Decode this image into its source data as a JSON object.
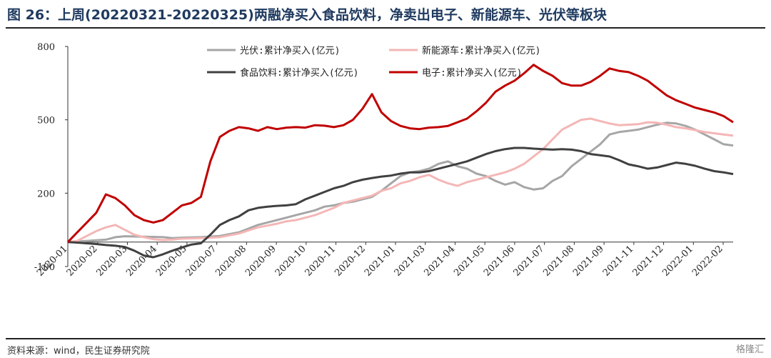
{
  "figure": {
    "title": "图 26：上周(20220321-20220325)两融净买入食品饮料，净卖出电子、新能源车、光伏等板块",
    "source": "资料来源：wind，民生证券研究院",
    "watermark": "格隆汇"
  },
  "chart_data": {
    "type": "line",
    "title": "",
    "xlabel": "",
    "ylabel": "",
    "ylim": [
      -100,
      800
    ],
    "yticks": [
      -100,
      200,
      500,
      800
    ],
    "xticks": [
      "2020-01",
      "2020-02",
      "2020-03",
      "2020-04",
      "2020-05",
      "2020-07",
      "2020-08",
      "2020-09",
      "2020-10",
      "2020-11",
      "2020-12",
      "2021-01",
      "2021-03",
      "2021-04",
      "2021-05",
      "2021-06",
      "2021-07",
      "2021-08",
      "2021-09",
      "2021-11",
      "2021-12",
      "2022-01",
      "2022-02"
    ],
    "legend_position": "top",
    "grid": false,
    "series": [
      {
        "name": "光伏:累计净买入(亿元)",
        "color": "#a6a6a6",
        "points": [
          [
            0,
            0
          ],
          [
            2,
            5
          ],
          [
            4,
            10
          ],
          [
            5,
            20
          ],
          [
            6,
            24
          ],
          [
            8,
            22
          ],
          [
            10,
            20
          ],
          [
            11,
            16
          ],
          [
            12,
            18
          ],
          [
            14,
            20
          ],
          [
            16,
            25
          ],
          [
            18,
            40
          ],
          [
            20,
            70
          ],
          [
            22,
            90
          ],
          [
            23,
            100
          ],
          [
            24,
            110
          ],
          [
            25,
            120
          ],
          [
            26,
            130
          ],
          [
            27,
            145
          ],
          [
            28,
            150
          ],
          [
            29,
            160
          ],
          [
            30,
            165
          ],
          [
            31,
            175
          ],
          [
            32,
            185
          ],
          [
            33,
            210
          ],
          [
            34,
            240
          ],
          [
            35,
            270
          ],
          [
            36,
            285
          ],
          [
            37,
            290
          ],
          [
            38,
            300
          ],
          [
            39,
            320
          ],
          [
            40,
            330
          ],
          [
            41,
            310
          ],
          [
            42,
            300
          ],
          [
            43,
            280
          ],
          [
            44,
            270
          ],
          [
            45,
            250
          ],
          [
            46,
            235
          ],
          [
            47,
            245
          ],
          [
            48,
            225
          ],
          [
            49,
            215
          ],
          [
            50,
            220
          ],
          [
            51,
            250
          ],
          [
            52,
            270
          ],
          [
            53,
            310
          ],
          [
            54,
            340
          ],
          [
            55,
            370
          ],
          [
            56,
            400
          ],
          [
            57,
            440
          ],
          [
            58,
            450
          ],
          [
            59,
            455
          ],
          [
            60,
            460
          ],
          [
            61,
            470
          ],
          [
            62,
            480
          ],
          [
            63,
            488
          ],
          [
            64,
            485
          ],
          [
            65,
            475
          ],
          [
            66,
            460
          ],
          [
            67,
            440
          ],
          [
            68,
            420
          ],
          [
            69,
            400
          ],
          [
            70,
            395
          ]
        ]
      },
      {
        "name": "新能源车:累计净买入(亿元)",
        "color": "#f4b6b6",
        "points": [
          [
            0,
            0
          ],
          [
            1,
            5
          ],
          [
            2,
            25
          ],
          [
            3,
            45
          ],
          [
            4,
            60
          ],
          [
            5,
            70
          ],
          [
            6,
            50
          ],
          [
            7,
            30
          ],
          [
            8,
            20
          ],
          [
            9,
            12
          ],
          [
            10,
            8
          ],
          [
            11,
            10
          ],
          [
            12,
            14
          ],
          [
            14,
            16
          ],
          [
            16,
            20
          ],
          [
            18,
            35
          ],
          [
            20,
            60
          ],
          [
            22,
            75
          ],
          [
            23,
            85
          ],
          [
            24,
            90
          ],
          [
            25,
            100
          ],
          [
            26,
            110
          ],
          [
            27,
            125
          ],
          [
            28,
            140
          ],
          [
            29,
            160
          ],
          [
            30,
            170
          ],
          [
            31,
            180
          ],
          [
            32,
            190
          ],
          [
            33,
            210
          ],
          [
            34,
            220
          ],
          [
            35,
            240
          ],
          [
            36,
            250
          ],
          [
            37,
            265
          ],
          [
            38,
            275
          ],
          [
            39,
            255
          ],
          [
            40,
            240
          ],
          [
            41,
            230
          ],
          [
            42,
            245
          ],
          [
            43,
            255
          ],
          [
            44,
            265
          ],
          [
            45,
            275
          ],
          [
            46,
            285
          ],
          [
            47,
            300
          ],
          [
            48,
            320
          ],
          [
            49,
            350
          ],
          [
            50,
            380
          ],
          [
            51,
            420
          ],
          [
            52,
            460
          ],
          [
            53,
            480
          ],
          [
            54,
            500
          ],
          [
            55,
            505
          ],
          [
            56,
            495
          ],
          [
            57,
            485
          ],
          [
            58,
            478
          ],
          [
            59,
            480
          ],
          [
            60,
            482
          ],
          [
            61,
            490
          ],
          [
            62,
            488
          ],
          [
            63,
            480
          ],
          [
            64,
            470
          ],
          [
            65,
            465
          ],
          [
            66,
            458
          ],
          [
            67,
            450
          ],
          [
            68,
            445
          ],
          [
            69,
            440
          ],
          [
            70,
            435
          ]
        ]
      },
      {
        "name": "食品饮料:累计净买入(亿元)",
        "color": "#404040",
        "points": [
          [
            0,
            0
          ],
          [
            1,
            -2
          ],
          [
            2,
            -5
          ],
          [
            3,
            -8
          ],
          [
            4,
            -12
          ],
          [
            5,
            -15
          ],
          [
            6,
            -20
          ],
          [
            7,
            -35
          ],
          [
            8,
            -55
          ],
          [
            9,
            -62
          ],
          [
            10,
            -50
          ],
          [
            11,
            -35
          ],
          [
            12,
            -22
          ],
          [
            13,
            -10
          ],
          [
            14,
            -5
          ],
          [
            15,
            30
          ],
          [
            16,
            70
          ],
          [
            17,
            90
          ],
          [
            18,
            105
          ],
          [
            19,
            130
          ],
          [
            20,
            140
          ],
          [
            21,
            145
          ],
          [
            22,
            148
          ],
          [
            23,
            150
          ],
          [
            24,
            155
          ],
          [
            25,
            175
          ],
          [
            26,
            190
          ],
          [
            27,
            205
          ],
          [
            28,
            220
          ],
          [
            29,
            230
          ],
          [
            30,
            245
          ],
          [
            31,
            255
          ],
          [
            32,
            262
          ],
          [
            33,
            268
          ],
          [
            34,
            272
          ],
          [
            35,
            280
          ],
          [
            36,
            285
          ],
          [
            37,
            285
          ],
          [
            38,
            290
          ],
          [
            39,
            300
          ],
          [
            40,
            310
          ],
          [
            41,
            320
          ],
          [
            42,
            330
          ],
          [
            43,
            345
          ],
          [
            44,
            360
          ],
          [
            45,
            372
          ],
          [
            46,
            380
          ],
          [
            47,
            385
          ],
          [
            48,
            385
          ],
          [
            49,
            382
          ],
          [
            50,
            380
          ],
          [
            51,
            378
          ],
          [
            52,
            380
          ],
          [
            53,
            378
          ],
          [
            54,
            372
          ],
          [
            55,
            360
          ],
          [
            56,
            355
          ],
          [
            57,
            350
          ],
          [
            58,
            335
          ],
          [
            59,
            318
          ],
          [
            60,
            310
          ],
          [
            61,
            300
          ],
          [
            62,
            305
          ],
          [
            63,
            315
          ],
          [
            64,
            325
          ],
          [
            65,
            320
          ],
          [
            66,
            312
          ],
          [
            67,
            300
          ],
          [
            68,
            290
          ],
          [
            69,
            285
          ],
          [
            70,
            278
          ]
        ]
      },
      {
        "name": "电子:累计净买入(亿元)",
        "color": "#c00000",
        "points": [
          [
            0,
            0
          ],
          [
            1,
            40
          ],
          [
            2,
            80
          ],
          [
            3,
            120
          ],
          [
            4,
            195
          ],
          [
            5,
            180
          ],
          [
            6,
            150
          ],
          [
            7,
            110
          ],
          [
            8,
            90
          ],
          [
            9,
            80
          ],
          [
            10,
            90
          ],
          [
            11,
            120
          ],
          [
            12,
            150
          ],
          [
            13,
            160
          ],
          [
            14,
            185
          ],
          [
            15,
            330
          ],
          [
            16,
            430
          ],
          [
            17,
            455
          ],
          [
            18,
            470
          ],
          [
            19,
            465
          ],
          [
            20,
            455
          ],
          [
            21,
            470
          ],
          [
            22,
            462
          ],
          [
            23,
            468
          ],
          [
            24,
            470
          ],
          [
            25,
            468
          ],
          [
            26,
            478
          ],
          [
            27,
            476
          ],
          [
            28,
            470
          ],
          [
            29,
            478
          ],
          [
            30,
            500
          ],
          [
            31,
            545
          ],
          [
            32,
            605
          ],
          [
            33,
            530
          ],
          [
            34,
            495
          ],
          [
            35,
            475
          ],
          [
            36,
            465
          ],
          [
            37,
            462
          ],
          [
            38,
            468
          ],
          [
            39,
            470
          ],
          [
            40,
            475
          ],
          [
            41,
            490
          ],
          [
            42,
            505
          ],
          [
            43,
            535
          ],
          [
            44,
            570
          ],
          [
            45,
            615
          ],
          [
            46,
            640
          ],
          [
            47,
            660
          ],
          [
            48,
            690
          ],
          [
            49,
            725
          ],
          [
            50,
            700
          ],
          [
            51,
            680
          ],
          [
            52,
            650
          ],
          [
            53,
            640
          ],
          [
            54,
            640
          ],
          [
            55,
            655
          ],
          [
            56,
            680
          ],
          [
            57,
            710
          ],
          [
            58,
            700
          ],
          [
            59,
            695
          ],
          [
            60,
            680
          ],
          [
            61,
            660
          ],
          [
            62,
            630
          ],
          [
            63,
            600
          ],
          [
            64,
            580
          ],
          [
            65,
            565
          ],
          [
            66,
            550
          ],
          [
            67,
            540
          ],
          [
            68,
            530
          ],
          [
            69,
            515
          ],
          [
            70,
            490
          ]
        ]
      }
    ]
  }
}
